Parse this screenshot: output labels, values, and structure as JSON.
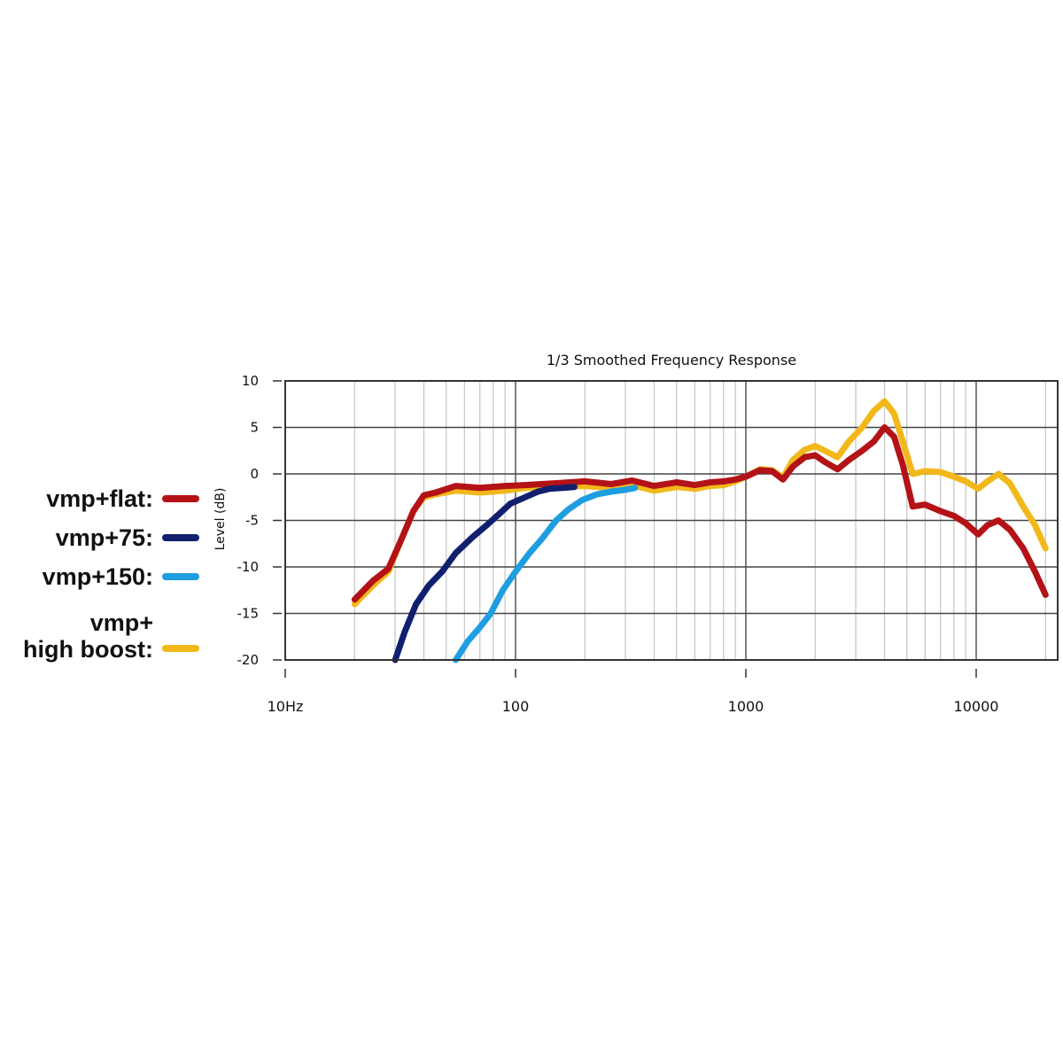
{
  "chart_data": {
    "type": "line",
    "title": "1/3 Smoothed Frequency Response",
    "xlabel": "",
    "ylabel": "Level (dB)",
    "xscale": "log",
    "xlim": [
      10,
      22500
    ],
    "ylim": [
      -20,
      10
    ],
    "x_ticks": [
      10,
      100,
      1000,
      10000
    ],
    "x_tick_labels": [
      "10Hz",
      "100",
      "1000",
      "10000"
    ],
    "y_ticks": [
      10,
      5,
      0,
      -5,
      -10,
      -15,
      -20
    ],
    "y_tick_labels": [
      "10",
      "5",
      "0",
      "-5",
      "-10",
      "-15",
      "-20"
    ],
    "grid": true,
    "legend_position": "left",
    "series": [
      {
        "name": "vmp+high boost",
        "legend_label": "vmp+\nhigh boost:",
        "color": "#f2b81a",
        "points": [
          [
            20,
            -14
          ],
          [
            24,
            -12
          ],
          [
            28,
            -10.5
          ],
          [
            32,
            -7
          ],
          [
            36,
            -4
          ],
          [
            40,
            -2.5
          ],
          [
            45,
            -2.2
          ],
          [
            55,
            -1.8
          ],
          [
            70,
            -2
          ],
          [
            90,
            -1.8
          ],
          [
            110,
            -1.5
          ],
          [
            150,
            -1.4
          ],
          [
            200,
            -1.3
          ],
          [
            260,
            -1.5
          ],
          [
            320,
            -1.2
          ],
          [
            400,
            -1.8
          ],
          [
            500,
            -1.4
          ],
          [
            600,
            -1.6
          ],
          [
            700,
            -1.3
          ],
          [
            800,
            -1.2
          ],
          [
            900,
            -0.8
          ],
          [
            1000,
            -0.3
          ],
          [
            1150,
            0.5
          ],
          [
            1300,
            0.4
          ],
          [
            1450,
            -0.4
          ],
          [
            1600,
            1.5
          ],
          [
            1800,
            2.6
          ],
          [
            2000,
            3
          ],
          [
            2200,
            2.5
          ],
          [
            2500,
            1.8
          ],
          [
            2800,
            3.5
          ],
          [
            3200,
            5
          ],
          [
            3600,
            6.8
          ],
          [
            4000,
            7.8
          ],
          [
            4400,
            6.5
          ],
          [
            4800,
            3.5
          ],
          [
            5300,
            0
          ],
          [
            6000,
            0.3
          ],
          [
            7000,
            0.2
          ],
          [
            8000,
            -0.3
          ],
          [
            9000,
            -0.8
          ],
          [
            10200,
            -1.6
          ],
          [
            11200,
            -0.8
          ],
          [
            12500,
            0
          ],
          [
            14000,
            -1
          ],
          [
            16000,
            -3.5
          ],
          [
            18000,
            -5.5
          ],
          [
            20000,
            -8
          ]
        ]
      },
      {
        "name": "vmp+flat",
        "legend_label": "vmp+flat:",
        "color": "#b31217",
        "points": [
          [
            20,
            -13.5
          ],
          [
            24,
            -11.5
          ],
          [
            28,
            -10.2
          ],
          [
            32,
            -7
          ],
          [
            36,
            -4
          ],
          [
            40,
            -2.3
          ],
          [
            45,
            -2
          ],
          [
            55,
            -1.3
          ],
          [
            70,
            -1.5
          ],
          [
            90,
            -1.3
          ],
          [
            110,
            -1.2
          ],
          [
            150,
            -1
          ],
          [
            200,
            -0.8
          ],
          [
            260,
            -1.1
          ],
          [
            320,
            -0.7
          ],
          [
            400,
            -1.3
          ],
          [
            500,
            -0.9
          ],
          [
            600,
            -1.2
          ],
          [
            700,
            -0.9
          ],
          [
            800,
            -0.8
          ],
          [
            900,
            -0.6
          ],
          [
            1000,
            -0.3
          ],
          [
            1150,
            0.4
          ],
          [
            1300,
            0.3
          ],
          [
            1450,
            -0.6
          ],
          [
            1600,
            0.8
          ],
          [
            1800,
            1.8
          ],
          [
            2000,
            2
          ],
          [
            2200,
            1.3
          ],
          [
            2500,
            0.5
          ],
          [
            2800,
            1.5
          ],
          [
            3200,
            2.5
          ],
          [
            3600,
            3.5
          ],
          [
            4000,
            5
          ],
          [
            4400,
            4
          ],
          [
            4800,
            1
          ],
          [
            5300,
            -3.5
          ],
          [
            6000,
            -3.3
          ],
          [
            7000,
            -4
          ],
          [
            8000,
            -4.5
          ],
          [
            9000,
            -5.3
          ],
          [
            10200,
            -6.5
          ],
          [
            11200,
            -5.5
          ],
          [
            12500,
            -5
          ],
          [
            14000,
            -6
          ],
          [
            16000,
            -8
          ],
          [
            18000,
            -10.5
          ],
          [
            20000,
            -13
          ]
        ]
      },
      {
        "name": "vmp+75",
        "legend_label": "vmp+75:",
        "color": "#101f6e",
        "points": [
          [
            30,
            -20
          ],
          [
            33,
            -17
          ],
          [
            37,
            -14
          ],
          [
            42,
            -12
          ],
          [
            48,
            -10.5
          ],
          [
            55,
            -8.5
          ],
          [
            65,
            -6.8
          ],
          [
            75,
            -5.5
          ],
          [
            85,
            -4.3
          ],
          [
            95,
            -3.2
          ],
          [
            110,
            -2.5
          ],
          [
            125,
            -1.9
          ],
          [
            140,
            -1.6
          ],
          [
            160,
            -1.5
          ],
          [
            180,
            -1.4
          ]
        ]
      },
      {
        "name": "vmp+150",
        "legend_label": "vmp+150:",
        "color": "#1e9ee0",
        "points": [
          [
            55,
            -20
          ],
          [
            62,
            -18
          ],
          [
            70,
            -16.5
          ],
          [
            78,
            -15
          ],
          [
            88,
            -12.5
          ],
          [
            100,
            -10.5
          ],
          [
            115,
            -8.5
          ],
          [
            130,
            -7
          ],
          [
            150,
            -5
          ],
          [
            170,
            -3.8
          ],
          [
            195,
            -2.8
          ],
          [
            225,
            -2.2
          ],
          [
            260,
            -1.9
          ],
          [
            300,
            -1.7
          ],
          [
            330,
            -1.5
          ]
        ]
      }
    ]
  }
}
